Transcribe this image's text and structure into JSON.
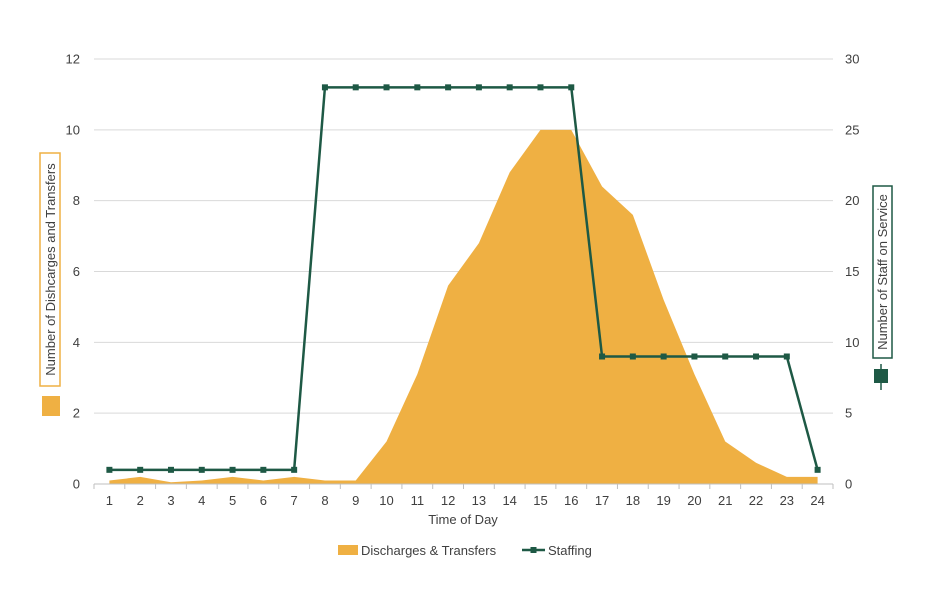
{
  "chart_data": {
    "type": "area",
    "x": [
      1,
      2,
      3,
      4,
      5,
      6,
      7,
      8,
      9,
      10,
      11,
      12,
      13,
      14,
      15,
      16,
      17,
      18,
      19,
      20,
      21,
      22,
      23,
      24
    ],
    "xlabel": "Time of Day",
    "ylabel": "Number of Dishcarges and Transfers",
    "y2label": "Number of Staff on Service",
    "ylim": [
      0,
      12
    ],
    "yticks": [
      "0",
      "2",
      "4",
      "6",
      "8",
      "10",
      "12"
    ],
    "y2lim": [
      0,
      30
    ],
    "y2ticks": [
      "0",
      "5",
      "10",
      "15",
      "20",
      "25",
      "30"
    ],
    "grid": true,
    "legend_position": "bottom",
    "series": [
      {
        "name": "Discharges & Transfers",
        "kind": "area",
        "axis": "left",
        "color": "#EFB043",
        "values": [
          0.1,
          0.2,
          0.05,
          0.1,
          0.2,
          0.1,
          0.2,
          0.1,
          0.1,
          1.2,
          3.1,
          5.6,
          6.8,
          8.8,
          10,
          10,
          8.4,
          7.6,
          5.2,
          3.1,
          1.2,
          0.6,
          0.2,
          0.2
        ]
      },
      {
        "name": "Staffing",
        "kind": "line",
        "axis": "right",
        "color": "#1E5945",
        "values": [
          1,
          1,
          1,
          1,
          1,
          1,
          1,
          28,
          28,
          28,
          28,
          28,
          28,
          28,
          28,
          28,
          9,
          9,
          9,
          9,
          9,
          9,
          9,
          1
        ]
      }
    ]
  }
}
